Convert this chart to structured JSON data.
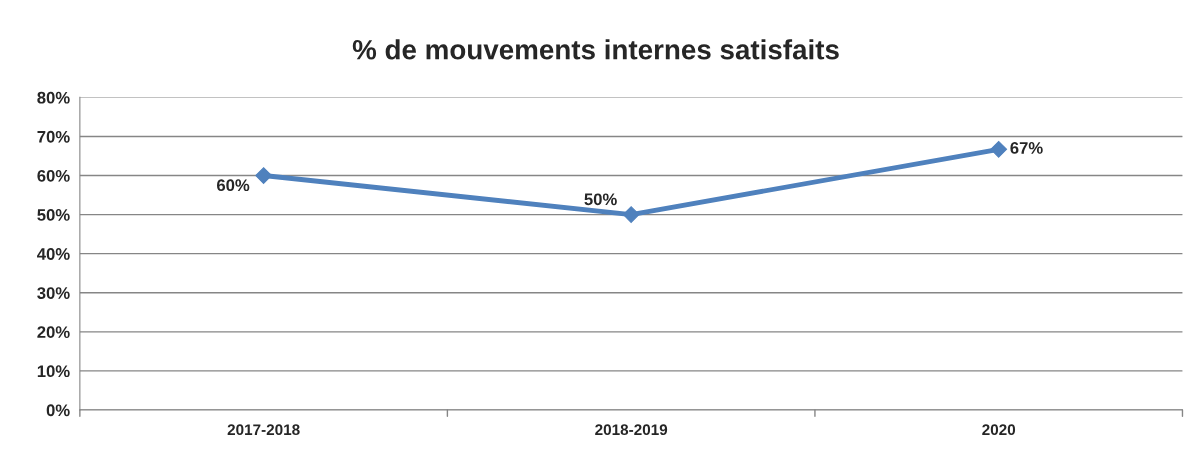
{
  "chart_data": {
    "type": "line",
    "title": "% de mouvements internes satisfaits",
    "categories": [
      "2017-2018",
      "2018-2019",
      "2020"
    ],
    "series": [
      {
        "color": "#4f81bd",
        "values": [
          60,
          50,
          66.7
        ],
        "value_labels": [
          "60%",
          "50%",
          "67%"
        ]
      }
    ],
    "ylim": [
      0,
      80
    ],
    "yticks": [
      {
        "value": 0,
        "label": "0%"
      },
      {
        "value": 10,
        "label": "10%"
      },
      {
        "value": 20,
        "label": "20%"
      },
      {
        "value": 30,
        "label": "30%"
      },
      {
        "value": 40,
        "label": "40%"
      },
      {
        "value": 50,
        "label": "50%"
      },
      {
        "value": 60,
        "label": "60%"
      },
      {
        "value": 70,
        "label": "70%"
      },
      {
        "value": 80,
        "label": "80%"
      }
    ],
    "grid": "y",
    "marker": "diamond",
    "line_style": "solid"
  }
}
